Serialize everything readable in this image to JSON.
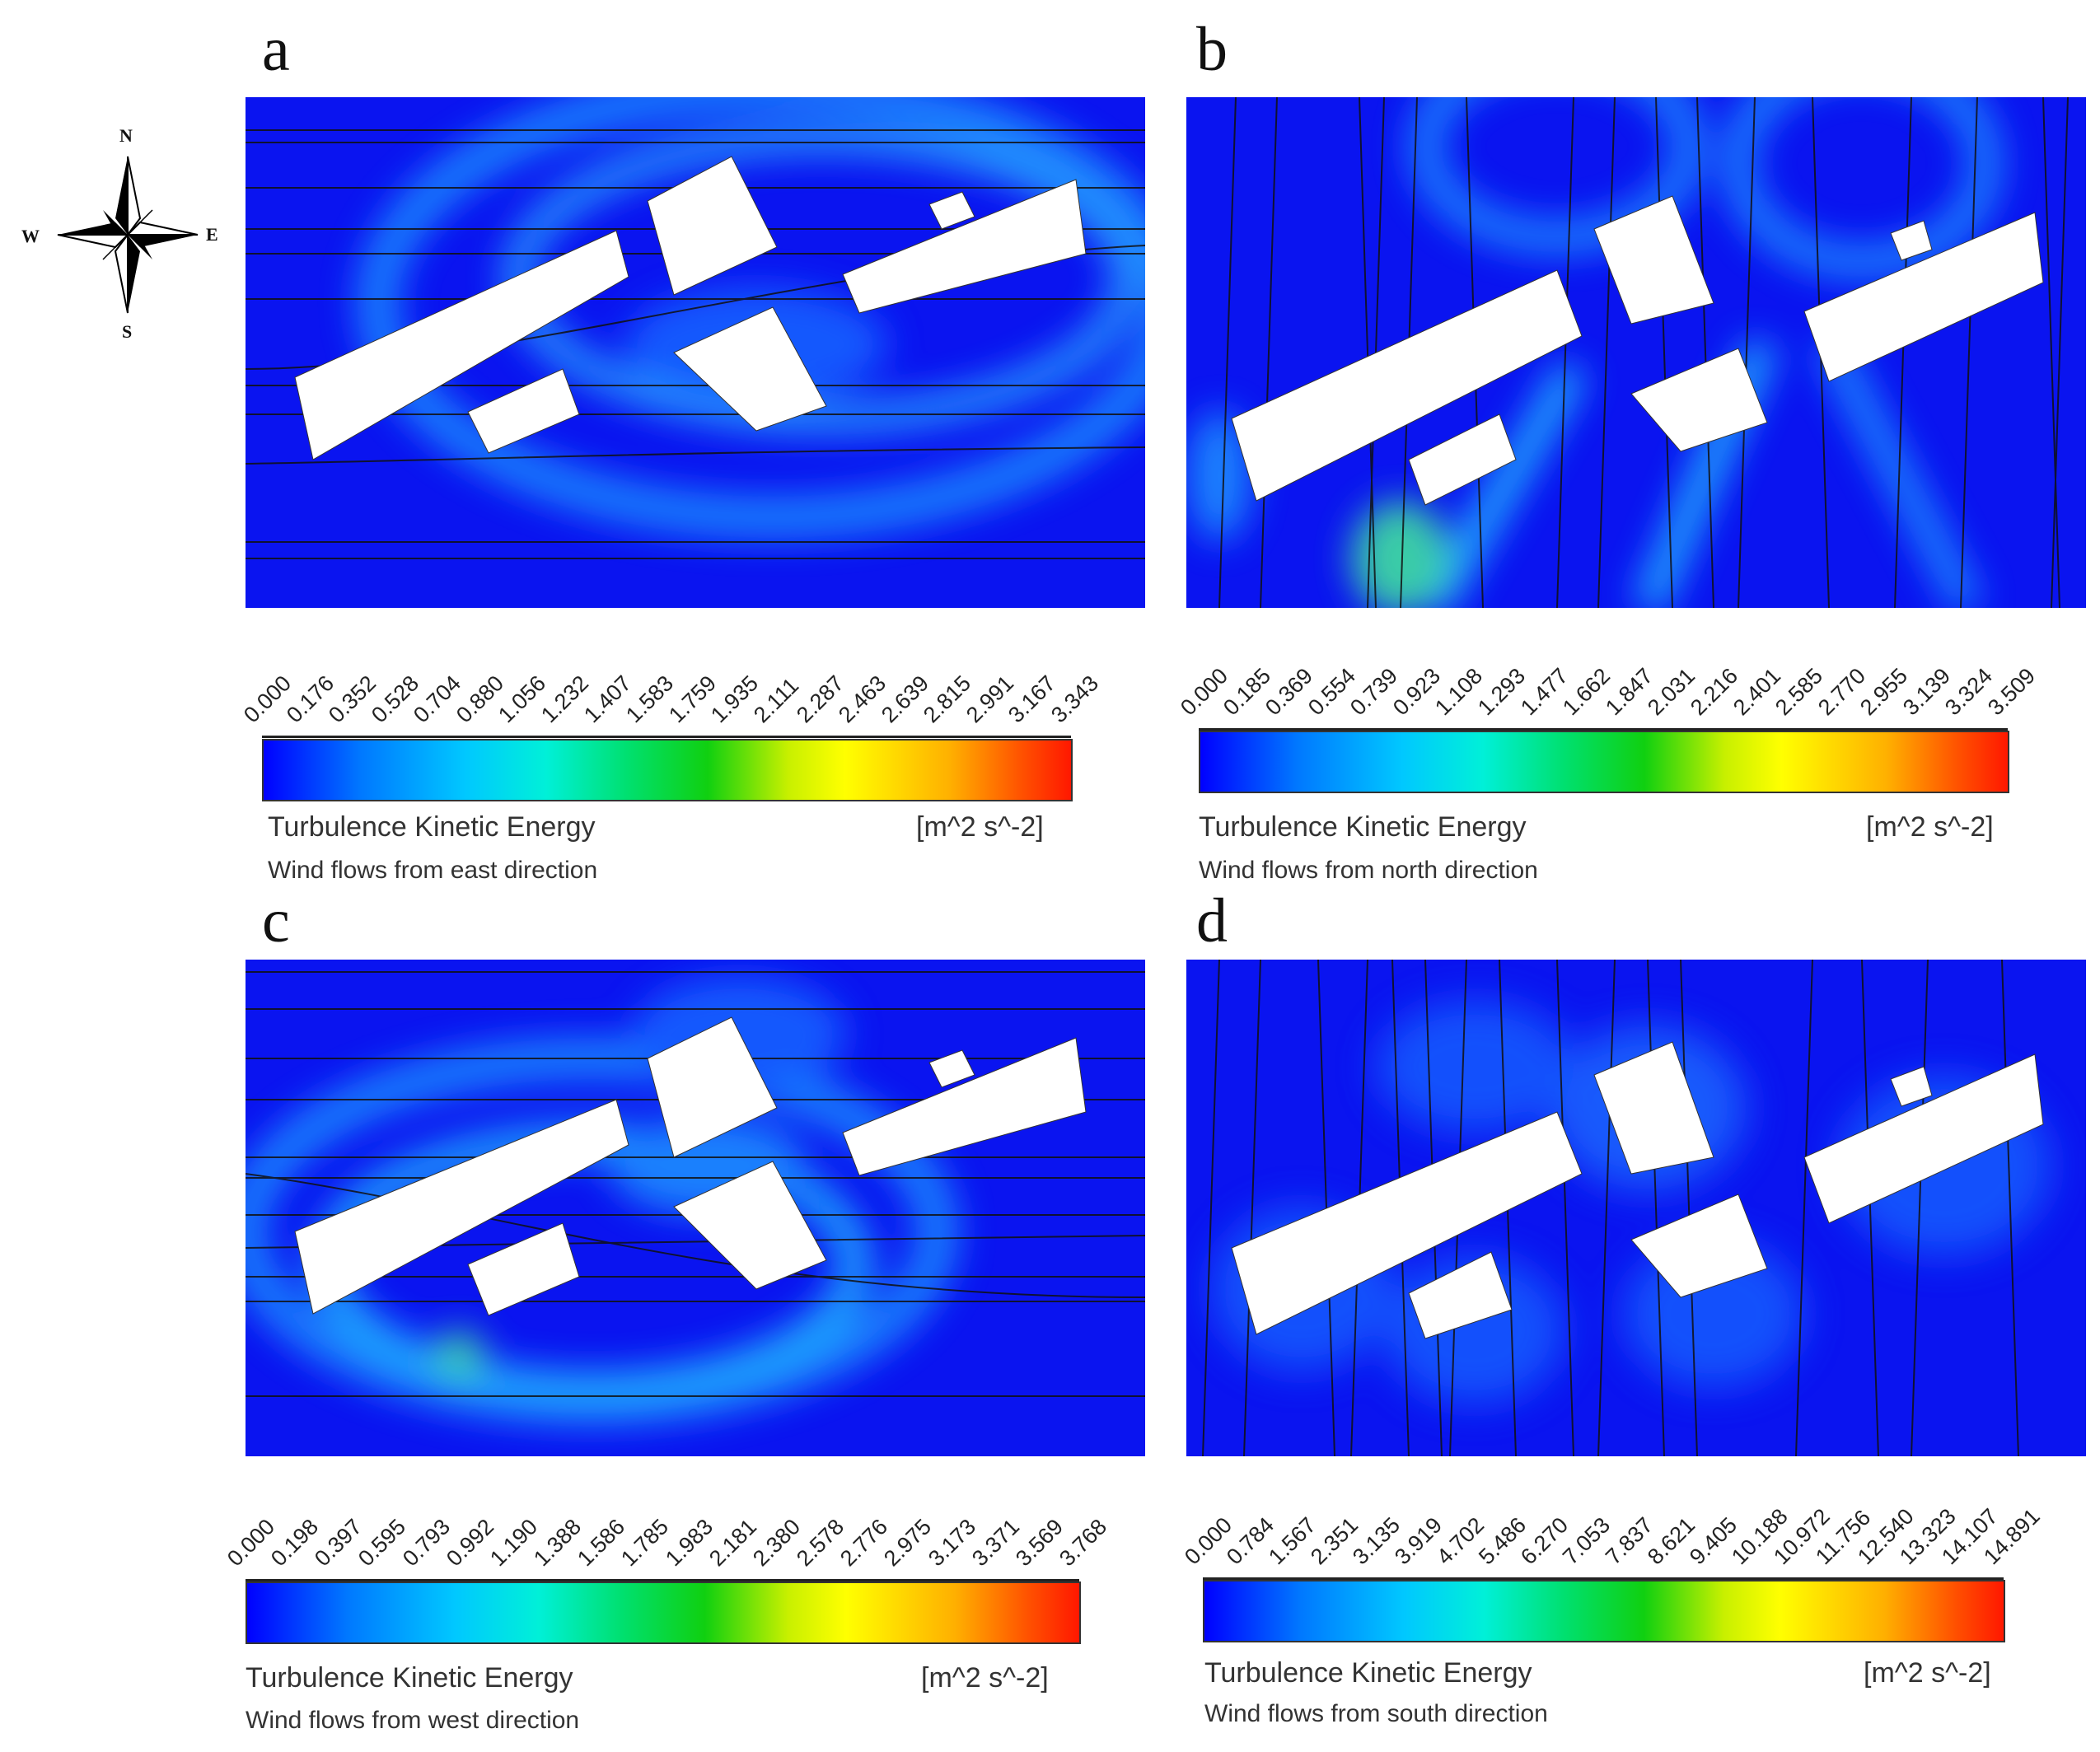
{
  "compass": {
    "n": "N",
    "s": "S",
    "e": "E",
    "w": "W"
  },
  "panels": [
    {
      "letter": "a",
      "ticks": [
        "0.000",
        "0.176",
        "0.352",
        "0.528",
        "0.704",
        "0.880",
        "1.056",
        "1.232",
        "1.407",
        "1.583",
        "1.759",
        "1.935",
        "2.111",
        "2.287",
        "2.463",
        "2.639",
        "2.815",
        "2.991",
        "3.167",
        "3.343"
      ],
      "legend_title": "Turbulence Kinetic Energy",
      "unit": "[m^2 s^-2]",
      "caption": "Wind flows from east direction"
    },
    {
      "letter": "b",
      "ticks": [
        "0.000",
        "0.185",
        "0.369",
        "0.554",
        "0.739",
        "0.923",
        "1.108",
        "1.293",
        "1.477",
        "1.662",
        "1.847",
        "2.031",
        "2.216",
        "2.401",
        "2.585",
        "2.770",
        "2.955",
        "3.139",
        "3.324",
        "3.509"
      ],
      "legend_title": "Turbulence Kinetic Energy",
      "unit": "[m^2 s^-2]",
      "caption": "Wind flows from north direction"
    },
    {
      "letter": "c",
      "ticks": [
        "0.000",
        "0.198",
        "0.397",
        "0.595",
        "0.793",
        "0.992",
        "1.190",
        "1.388",
        "1.586",
        "1.785",
        "1.983",
        "2.181",
        "2.380",
        "2.578",
        "2.776",
        "2.975",
        "3.173",
        "3.371",
        "3.569",
        "3.768"
      ],
      "legend_title": "Turbulence Kinetic Energy",
      "unit": "[m^2 s^-2]",
      "caption": "Wind flows from west direction"
    },
    {
      "letter": "d",
      "ticks": [
        "0.000",
        "0.784",
        "1.567",
        "2.351",
        "3.135",
        "3.919",
        "4.702",
        "5.486",
        "6.270",
        "7.053",
        "7.837",
        "8.621",
        "9.405",
        "10.188",
        "10.972",
        "11.756",
        "12.540",
        "13.323",
        "14.107",
        "14.891"
      ],
      "legend_title": "Turbulence Kinetic Energy",
      "unit": "[m^2 s^-2]",
      "caption": "Wind flows from south direction"
    }
  ]
}
